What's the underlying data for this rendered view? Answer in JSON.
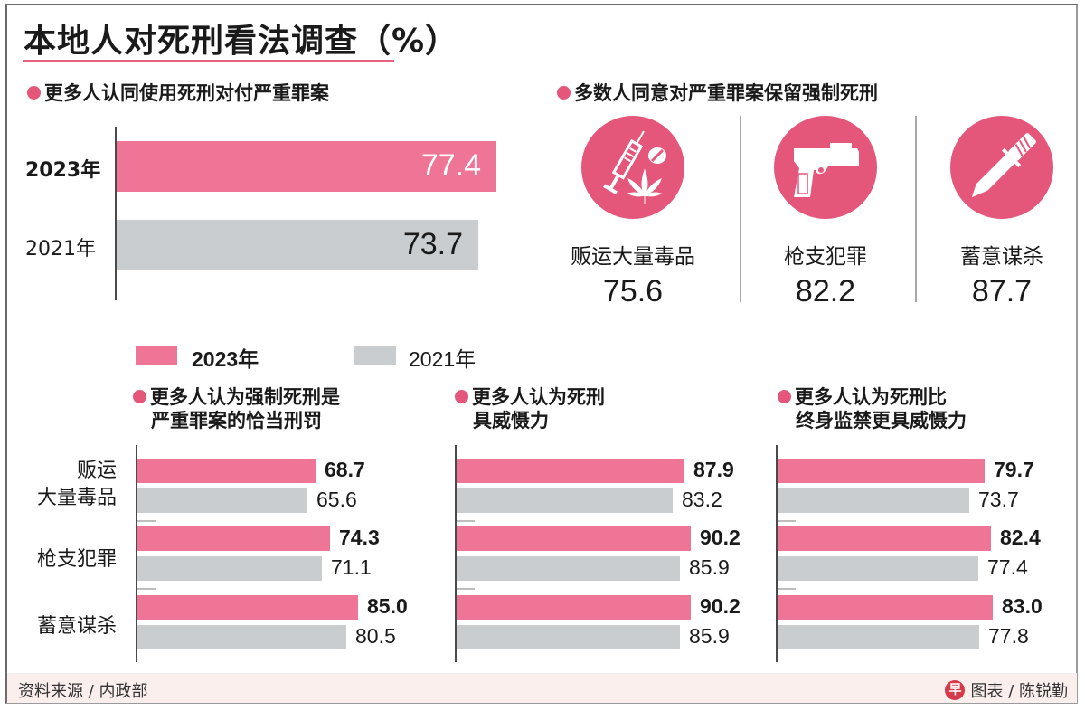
{
  "title": "本地人对死刑看法调查（%）",
  "colors": {
    "accent": "#e4577a",
    "bar_2023": "#ef7596",
    "bar_2021": "#c9cdcf",
    "rule": "#e8607f"
  },
  "section1": {
    "heading": "更多人认同使用死刑对付严重罪案"
  },
  "section2": {
    "heading": "多数人同意对严重罪案保留强制死刑",
    "items": [
      {
        "icon": "drugs-syringe-icon",
        "label": "贩运大量毒品",
        "value": "75.6"
      },
      {
        "icon": "pistol-icon",
        "label": "枪支犯罪",
        "value": "82.2"
      },
      {
        "icon": "knife-icon",
        "label": "蓄意谋杀",
        "value": "87.7"
      }
    ]
  },
  "legend": {
    "items": [
      {
        "label": "2023年"
      },
      {
        "label": "2021年"
      }
    ]
  },
  "panels": [
    {
      "heading_line1": "更多人认为强制死刑是",
      "heading_line2": "严重罪案的恰当刑罚"
    },
    {
      "heading_line1": "更多人认为死刑",
      "heading_line2": "具威慑力"
    },
    {
      "heading_line1": "更多人认为死刑比",
      "heading_line2": "终身监禁更具威慑力"
    }
  ],
  "categories": [
    {
      "line1": "贩运",
      "line2": "大量毒品"
    },
    {
      "line1": "枪支犯罪",
      "line2": ""
    },
    {
      "line1": "蓄意谋杀",
      "line2": ""
    }
  ],
  "footer": {
    "source": "资料来源 / 内政部",
    "logo_glyph": "早",
    "credit": "图表 / 陈锐勤"
  },
  "chart_data": [
    {
      "type": "bar",
      "orientation": "horizontal",
      "title": "更多人认同使用死刑对付严重罪案",
      "categories": [
        "2023年",
        "2021年"
      ],
      "values": [
        77.4,
        73.7
      ],
      "value_labels": [
        "77.4",
        "73.7"
      ],
      "unit": "%"
    },
    {
      "type": "table",
      "title": "多数人同意对严重罪案保留强制死刑",
      "categories": [
        "贩运大量毒品",
        "枪支犯罪",
        "蓄意谋杀"
      ],
      "values": [
        75.6,
        82.2,
        87.7
      ],
      "unit": "%"
    },
    {
      "type": "bar",
      "orientation": "horizontal",
      "title": "更多人认为强制死刑是严重罪案的恰当刑罚",
      "categories": [
        "贩运大量毒品",
        "枪支犯罪",
        "蓄意谋杀"
      ],
      "series": [
        {
          "name": "2023年",
          "values": [
            68.7,
            74.3,
            85.0
          ],
          "labels": [
            "68.7",
            "74.3",
            "85.0"
          ]
        },
        {
          "name": "2021年",
          "values": [
            65.6,
            71.1,
            80.5
          ],
          "labels": [
            "65.6",
            "71.1",
            "80.5"
          ]
        }
      ],
      "unit": "%"
    },
    {
      "type": "bar",
      "orientation": "horizontal",
      "title": "更多人认为死刑具威慑力",
      "categories": [
        "贩运大量毒品",
        "枪支犯罪",
        "蓄意谋杀"
      ],
      "series": [
        {
          "name": "2023年",
          "values": [
            87.9,
            90.2,
            90.2
          ],
          "labels": [
            "87.9",
            "90.2",
            "90.2"
          ]
        },
        {
          "name": "2021年",
          "values": [
            83.2,
            85.9,
            85.9
          ],
          "labels": [
            "83.2",
            "85.9",
            "85.9"
          ]
        }
      ],
      "unit": "%"
    },
    {
      "type": "bar",
      "orientation": "horizontal",
      "title": "更多人认为死刑比终身监禁更具威慑力",
      "categories": [
        "贩运大量毒品",
        "枪支犯罪",
        "蓄意谋杀"
      ],
      "series": [
        {
          "name": "2023年",
          "values": [
            79.7,
            82.4,
            83.0
          ],
          "labels": [
            "79.7",
            "82.4",
            "83.0"
          ]
        },
        {
          "name": "2021年",
          "values": [
            73.7,
            77.4,
            77.8
          ],
          "labels": [
            "73.7",
            "77.4",
            "77.8"
          ]
        }
      ],
      "unit": "%"
    }
  ]
}
